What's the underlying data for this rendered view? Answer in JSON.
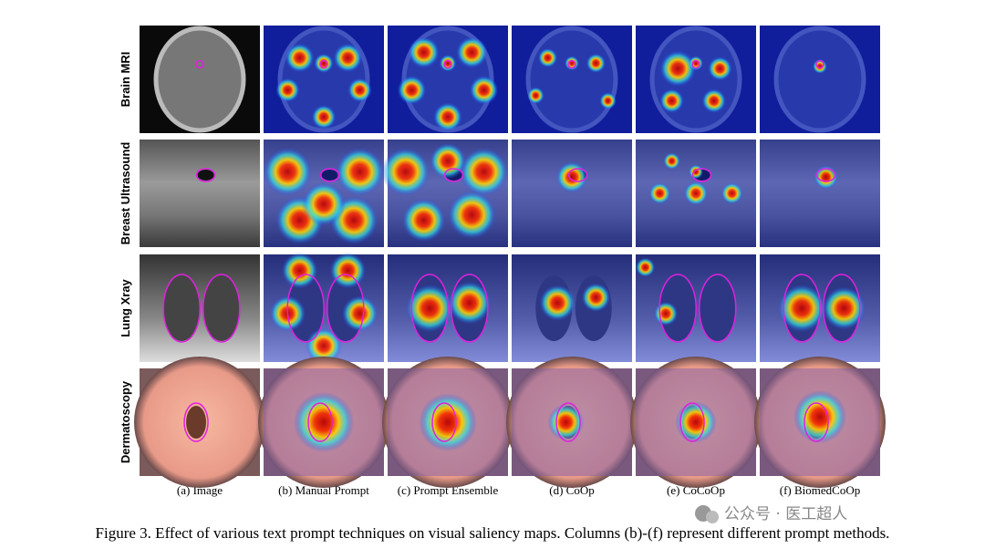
{
  "row_labels": [
    "Brain MRI",
    "Breast Ultrasound",
    "Lung Xray",
    "Dermatoscopy"
  ],
  "column_labels": [
    "(a) Image",
    "(b) Manual Prompt",
    "(c) Prompt Ensemble",
    "(d) CoOp",
    "(e) CoCoOp",
    "(f) BiomedCoOp"
  ],
  "caption": "Figure 3. Effect of various text prompt techniques on visual saliency maps. Columns (b)-(f) represent different prompt methods.",
  "watermark": "公众号 · 医工超人"
}
